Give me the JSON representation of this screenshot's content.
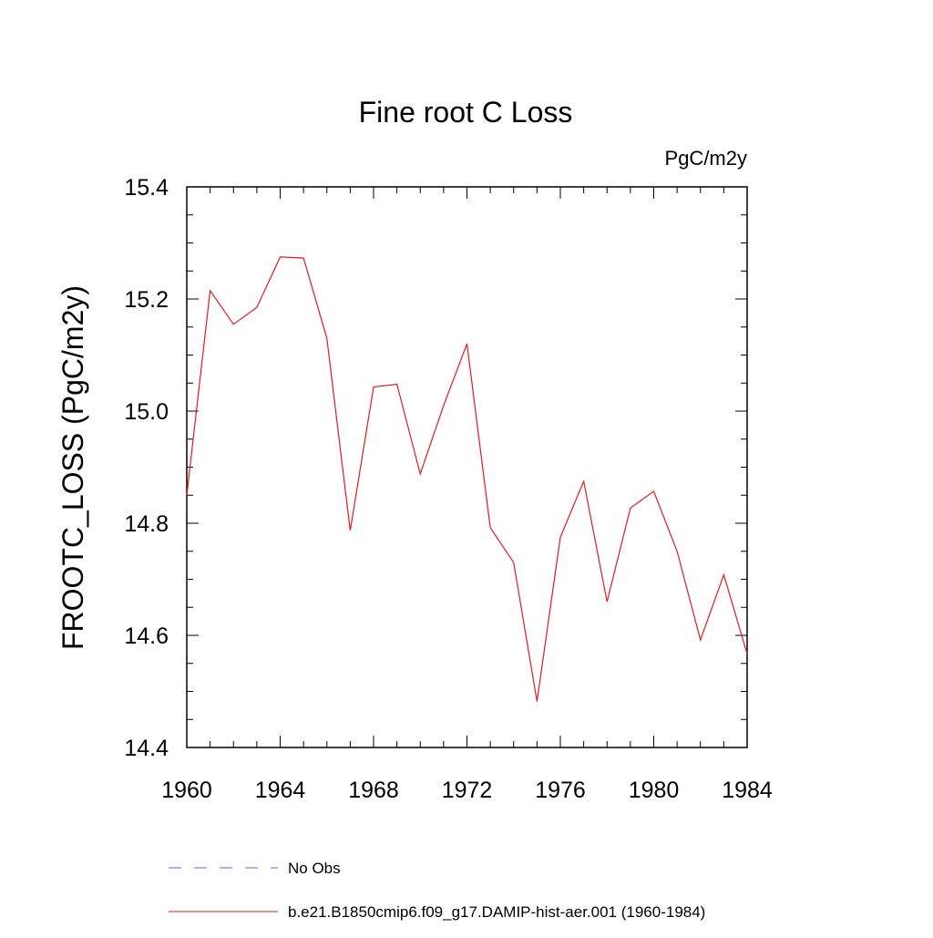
{
  "chart_data": {
    "type": "line",
    "title": "Fine root C Loss",
    "units_label": "PgC/m2y",
    "ylabel": "FROOTC_LOSS  (PgC/m2y)",
    "xlabel": "",
    "xlim": [
      1960,
      1984
    ],
    "ylim": [
      14.4,
      15.4
    ],
    "x_ticks": [
      1960,
      1964,
      1968,
      1972,
      1976,
      1980,
      1984
    ],
    "x_tick_labels": [
      "1960",
      "1964",
      "1968",
      "1972",
      "1976",
      "1980",
      "1984"
    ],
    "y_ticks": [
      14.4,
      14.6,
      14.8,
      15.0,
      15.2,
      15.4
    ],
    "y_tick_labels": [
      "14.4",
      "14.6",
      "14.8",
      "15.0",
      "15.2",
      "15.4"
    ],
    "grid": false,
    "legend_position": "bottom",
    "series": [
      {
        "name": "b.e21.B1850cmip6.f09_g17.DAMIP-hist-aer.001 (1960-1984)",
        "color": "#e41a1c",
        "style": "solid",
        "x": [
          1960,
          1961,
          1962,
          1963,
          1964,
          1965,
          1966,
          1967,
          1968,
          1969,
          1970,
          1971,
          1972,
          1973,
          1974,
          1975,
          1976,
          1977,
          1978,
          1979,
          1980,
          1981,
          1982,
          1983,
          1984
        ],
        "y": [
          14.85,
          15.215,
          15.155,
          15.185,
          15.275,
          15.273,
          15.13,
          14.787,
          15.043,
          15.048,
          14.888,
          15.01,
          15.12,
          14.792,
          14.73,
          14.482,
          14.775,
          14.875,
          14.66,
          14.827,
          14.857,
          14.75,
          14.592,
          14.708,
          14.567
        ]
      }
    ],
    "legend": [
      {
        "label": "No Obs",
        "color": "#6b6bdc",
        "style": "dashed"
      },
      {
        "label": "b.e21.B1850cmip6.f09_g17.DAMIP-hist-aer.001 (1960-1984)",
        "color": "#e41a1c",
        "style": "solid"
      }
    ]
  }
}
